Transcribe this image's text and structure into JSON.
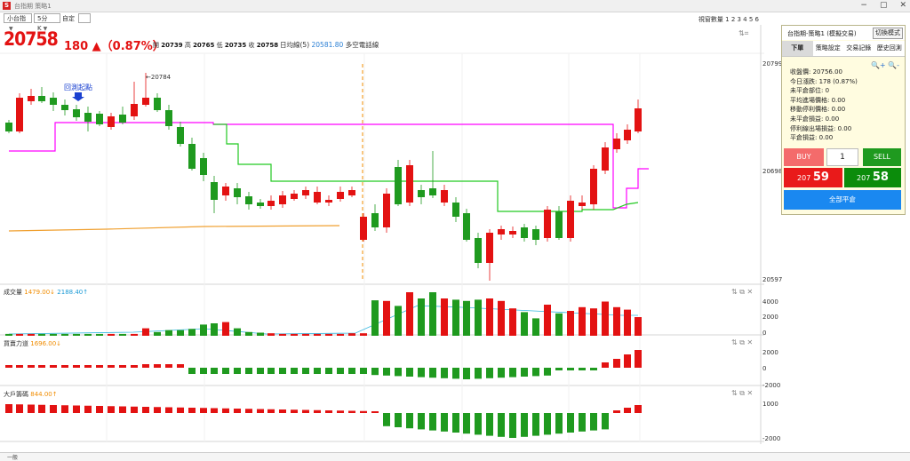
{
  "window": {
    "title": "台指期 策略1",
    "app_letter": "S"
  },
  "toolbar": {
    "symbol": "小台指",
    "interval": "5分K",
    "custom_label": "自定",
    "view_count": "視窗數量 1 2 3 4 5 6"
  },
  "quote": {
    "price": "20758",
    "change": "180 ▲（0.87%）",
    "open_label": "開",
    "open": "20739",
    "high_label": "高",
    "high": "20765",
    "low_label": "低",
    "low": "20735",
    "close_label": "收",
    "close": "20758",
    "ma_label": "日均線(5)",
    "ma_value": "20581.80",
    "ma_suffix": "多空電話線"
  },
  "chart": {
    "y_axis": {
      "top": "20799",
      "mid": "20698",
      "bottom": "20597"
    },
    "high_marker": "←20784",
    "annotation": "回測起點",
    "colors": {
      "up": "#e31212",
      "down": "#1f9a1f",
      "stop": "#ff00ff",
      "trail": "#22c922",
      "ma": "#f08c00"
    }
  },
  "volume_panel": {
    "label": "成交量",
    "v1": "1479.00↓",
    "v2": "2188.40↑",
    "ticks": [
      "4000",
      "2000",
      "0"
    ]
  },
  "power_panel": {
    "label": "買賣力道",
    "v1": "1696.00↓",
    "ticks": [
      "2000",
      "0",
      "-2000"
    ]
  },
  "big_panel": {
    "label": "大戶籌碼",
    "v1": "844.00↑",
    "ticks": [
      "1000",
      "-2000"
    ]
  },
  "right_panel": {
    "title": "台指期-策略1 (模擬交易)",
    "mode_button": "切換模式",
    "tabs": [
      "下單",
      "策略設定",
      "交易記錄",
      "歷史回測"
    ],
    "info": [
      "收盤價: 20756.00",
      "今日漲跌: 178 (0.87%)",
      "未平倉部位: 0",
      "平均進場價格: 0.00",
      "移動停利價格: 0.00",
      "未平倉損益: 0.00",
      "停利線出場損益: 0.00",
      "平倉損益: 0.00"
    ],
    "buy_label": "BUY",
    "quantity": "1",
    "sell_label": "SELL",
    "bid_prefix": "207",
    "bid_suffix": "59",
    "ask_prefix": "207",
    "ask_suffix": "58",
    "close_all": "全部平倉"
  },
  "status": {
    "tab": "一般"
  }
}
